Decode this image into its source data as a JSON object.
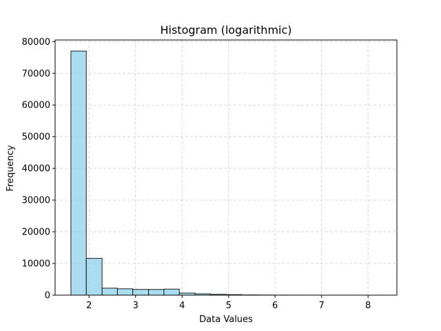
{
  "chart_data": {
    "type": "bar",
    "title": "Histogram (logarithmic)",
    "xlabel": "Data Values",
    "ylabel": "Frequency",
    "xlim": [
      1.27,
      8.62
    ],
    "ylim": [
      0,
      80500
    ],
    "grid": true,
    "x_ticks": [
      2,
      3,
      4,
      5,
      6,
      7,
      8
    ],
    "y_ticks": [
      0,
      10000,
      20000,
      30000,
      40000,
      50000,
      60000,
      70000,
      80000
    ],
    "bins": [
      {
        "x0": 1.61,
        "x1": 1.94,
        "value": 77000
      },
      {
        "x0": 1.94,
        "x1": 2.28,
        "value": 11600
      },
      {
        "x0": 2.28,
        "x1": 2.61,
        "value": 2200
      },
      {
        "x0": 2.61,
        "x1": 2.94,
        "value": 2000
      },
      {
        "x0": 2.94,
        "x1": 3.28,
        "value": 1800
      },
      {
        "x0": 3.28,
        "x1": 3.61,
        "value": 1800
      },
      {
        "x0": 3.61,
        "x1": 3.94,
        "value": 1900
      },
      {
        "x0": 3.94,
        "x1": 4.28,
        "value": 650
      },
      {
        "x0": 4.28,
        "x1": 4.61,
        "value": 420
      },
      {
        "x0": 4.61,
        "x1": 4.95,
        "value": 250
      },
      {
        "x0": 4.95,
        "x1": 5.28,
        "value": 160
      },
      {
        "x0": 5.28,
        "x1": 5.61,
        "value": 70
      },
      {
        "x0": 5.61,
        "x1": 5.95,
        "value": 40
      },
      {
        "x0": 5.95,
        "x1": 6.28,
        "value": 25
      },
      {
        "x0": 6.28,
        "x1": 6.61,
        "value": 15
      },
      {
        "x0": 6.61,
        "x1": 6.95,
        "value": 10
      },
      {
        "x0": 6.95,
        "x1": 7.28,
        "value": 8
      },
      {
        "x0": 7.28,
        "x1": 7.62,
        "value": 5
      },
      {
        "x0": 7.62,
        "x1": 7.95,
        "value": 3
      },
      {
        "x0": 7.95,
        "x1": 8.28,
        "value": 2
      }
    ],
    "colors": {
      "bar_fill": "#87ceeb",
      "bar_edge": "#1a1a1a",
      "grid": "#cccccc"
    }
  }
}
